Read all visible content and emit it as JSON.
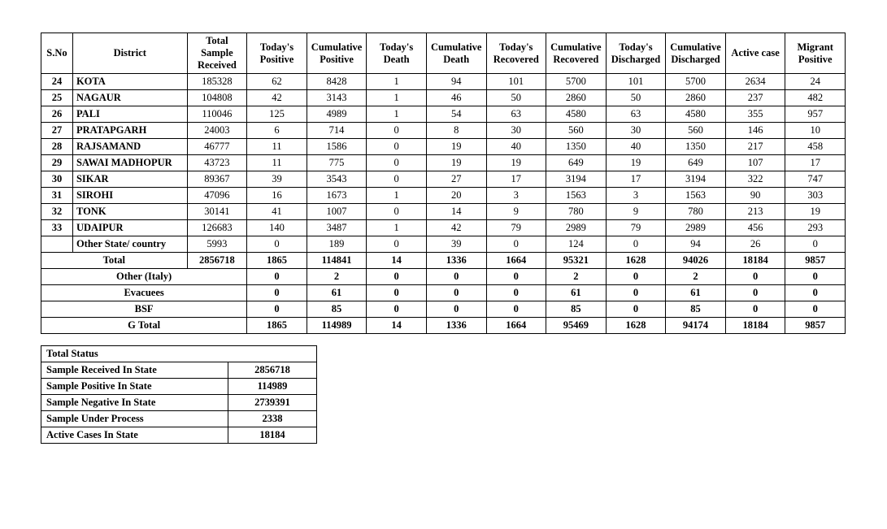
{
  "main_table": {
    "columns": [
      "S.No",
      "District",
      "Total Sample Received",
      "Today's Positive",
      "Cumulative Positive",
      "Today's Death",
      "Cumulative Death",
      "Today's Recovered",
      "Cumulative Recovered",
      "Today's Discharged",
      "Cumulative Discharged",
      "Active case",
      "Migrant Positive"
    ],
    "rows": [
      {
        "sno": "24",
        "district": "KOTA",
        "v": [
          "185328",
          "62",
          "8428",
          "1",
          "94",
          "101",
          "5700",
          "101",
          "5700",
          "2634",
          "24"
        ]
      },
      {
        "sno": "25",
        "district": "NAGAUR",
        "v": [
          "104808",
          "42",
          "3143",
          "1",
          "46",
          "50",
          "2860",
          "50",
          "2860",
          "237",
          "482"
        ]
      },
      {
        "sno": "26",
        "district": "PALI",
        "v": [
          "110046",
          "125",
          "4989",
          "1",
          "54",
          "63",
          "4580",
          "63",
          "4580",
          "355",
          "957"
        ]
      },
      {
        "sno": "27",
        "district": "PRATAPGARH",
        "v": [
          "24003",
          "6",
          "714",
          "0",
          "8",
          "30",
          "560",
          "30",
          "560",
          "146",
          "10"
        ]
      },
      {
        "sno": "28",
        "district": "RAJSAMAND",
        "v": [
          "46777",
          "11",
          "1586",
          "0",
          "19",
          "40",
          "1350",
          "40",
          "1350",
          "217",
          "458"
        ]
      },
      {
        "sno": "29",
        "district": "SAWAI MADHOPUR",
        "v": [
          "43723",
          "11",
          "775",
          "0",
          "19",
          "19",
          "649",
          "19",
          "649",
          "107",
          "17"
        ]
      },
      {
        "sno": "30",
        "district": "SIKAR",
        "v": [
          "89367",
          "39",
          "3543",
          "0",
          "27",
          "17",
          "3194",
          "17",
          "3194",
          "322",
          "747"
        ]
      },
      {
        "sno": "31",
        "district": "SIROHI",
        "v": [
          "47096",
          "16",
          "1673",
          "1",
          "20",
          "3",
          "1563",
          "3",
          "1563",
          "90",
          "303"
        ]
      },
      {
        "sno": "32",
        "district": "TONK",
        "v": [
          "30141",
          "41",
          "1007",
          "0",
          "14",
          "9",
          "780",
          "9",
          "780",
          "213",
          "19"
        ]
      },
      {
        "sno": "33",
        "district": "UDAIPUR",
        "v": [
          "126683",
          "140",
          "3487",
          "1",
          "42",
          "79",
          "2989",
          "79",
          "2989",
          "456",
          "293"
        ]
      },
      {
        "sno": "",
        "district": "Other State/ country",
        "v": [
          "5993",
          "0",
          "189",
          "0",
          "39",
          "0",
          "124",
          "0",
          "94",
          "26",
          "0"
        ]
      }
    ],
    "summary": [
      {
        "label": "Total",
        "span": 2,
        "has_first_val": true,
        "v": [
          "2856718",
          "1865",
          "114841",
          "14",
          "1336",
          "1664",
          "95321",
          "1628",
          "94026",
          "18184",
          "9857"
        ]
      },
      {
        "label": "Other (Italy)",
        "span": 3,
        "has_first_val": false,
        "v": [
          "0",
          "2",
          "0",
          "0",
          "0",
          "2",
          "0",
          "2",
          "0",
          "0"
        ]
      },
      {
        "label": "Evacuees",
        "span": 3,
        "has_first_val": false,
        "v": [
          "0",
          "61",
          "0",
          "0",
          "0",
          "61",
          "0",
          "61",
          "0",
          "0"
        ]
      },
      {
        "label": "BSF",
        "span": 3,
        "has_first_val": false,
        "v": [
          "0",
          "85",
          "0",
          "0",
          "0",
          "85",
          "0",
          "85",
          "0",
          "0"
        ]
      },
      {
        "label": "G Total",
        "span": 3,
        "has_first_val": false,
        "v": [
          "1865",
          "114989",
          "14",
          "1336",
          "1664",
          "95469",
          "1628",
          "94174",
          "18184",
          "9857"
        ]
      }
    ]
  },
  "status_table": {
    "header": "Total Status",
    "rows": [
      {
        "label": "Sample Received In State",
        "val": "2856718"
      },
      {
        "label": "Sample Positive In State",
        "val": "114989"
      },
      {
        "label": "Sample Negative In State",
        "val": "2739391"
      },
      {
        "label": "Sample Under Process",
        "val": "2338"
      },
      {
        "label": "Active Cases In State",
        "val": "18184"
      }
    ]
  }
}
